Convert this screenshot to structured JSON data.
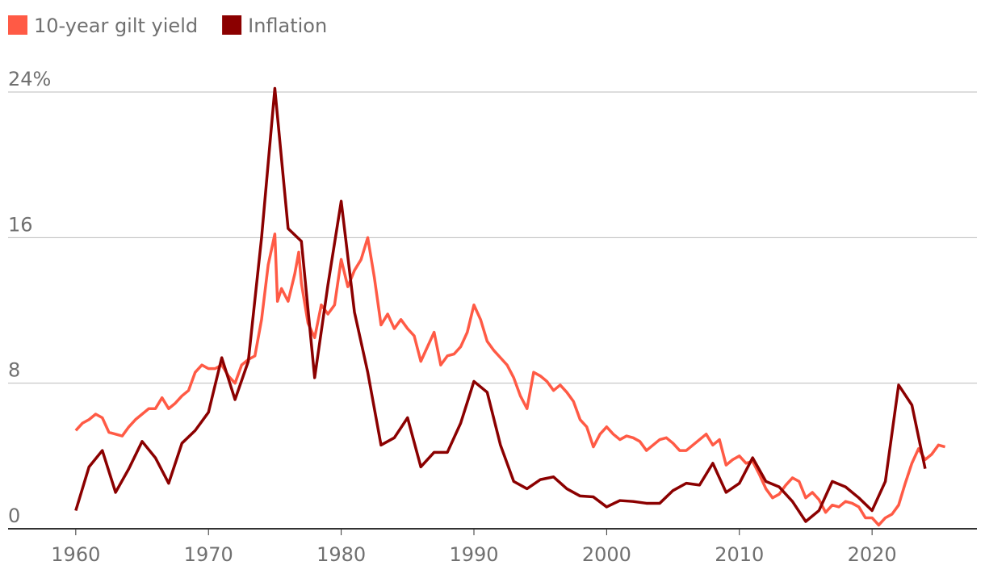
{
  "chart_data": {
    "type": "line",
    "legend": "top-left",
    "grid": true,
    "xlim": [
      1954.9,
      2027.9
    ],
    "xticks": [
      1960,
      1970,
      1980,
      1990,
      2000,
      2010,
      2020
    ],
    "ylim": [
      0,
      25
    ],
    "yticks": [
      0,
      8,
      16,
      {
        "value": 24,
        "label": "24%"
      }
    ],
    "series": [
      {
        "name": "10-year gilt yield",
        "color": "#ff5a45",
        "x": [
          1960,
          1960.5,
          1961,
          1961.5,
          1962,
          1962.5,
          1963,
          1963.5,
          1964,
          1964.5,
          1965,
          1965.5,
          1966,
          1966.5,
          1967,
          1967.5,
          1968,
          1968.5,
          1969,
          1969.5,
          1970,
          1970.5,
          1971,
          1971.5,
          1972,
          1972.5,
          1973,
          1973.5,
          1974,
          1974.5,
          1975,
          1975.2,
          1975.5,
          1976,
          1976.5,
          1976.8,
          1977,
          1977.5,
          1978,
          1978.5,
          1979,
          1979.5,
          1980,
          1980.5,
          1981,
          1981.5,
          1982,
          1982.5,
          1983,
          1983.5,
          1984,
          1984.5,
          1985,
          1985.5,
          1986,
          1986.5,
          1987,
          1987.5,
          1988,
          1988.5,
          1989,
          1989.5,
          1990,
          1990.5,
          1991,
          1991.5,
          1992,
          1992.5,
          1993,
          1993.5,
          1994,
          1994.5,
          1995,
          1995.5,
          1996,
          1996.5,
          1997,
          1997.5,
          1998,
          1998.5,
          1999,
          1999.5,
          2000,
          2000.5,
          2001,
          2001.5,
          2002,
          2002.5,
          2003,
          2003.5,
          2004,
          2004.5,
          2005,
          2005.5,
          2006,
          2006.5,
          2007,
          2007.5,
          2008,
          2008.5,
          2009,
          2009.5,
          2010,
          2010.5,
          2011,
          2011.5,
          2012,
          2012.5,
          2013,
          2013.5,
          2014,
          2014.5,
          2015,
          2015.5,
          2016,
          2016.5,
          2017,
          2017.5,
          2018,
          2018.5,
          2019,
          2019.5,
          2020,
          2020.5,
          2021,
          2021.5,
          2022,
          2022.5,
          2023,
          2023.5,
          2024,
          2024.5,
          2025,
          2025.5
        ],
        "values": [
          5.4,
          5.8,
          6.0,
          6.3,
          6.1,
          5.3,
          5.2,
          5.1,
          5.6,
          6.0,
          6.3,
          6.6,
          6.6,
          7.2,
          6.6,
          6.9,
          7.3,
          7.6,
          8.6,
          9.0,
          8.8,
          8.8,
          9.0,
          8.4,
          8.0,
          9.0,
          9.3,
          9.5,
          11.5,
          14.5,
          16.2,
          12.5,
          13.2,
          12.5,
          14.0,
          15.2,
          13.5,
          11.3,
          10.5,
          12.3,
          11.8,
          12.3,
          14.8,
          13.3,
          14.2,
          14.8,
          16.0,
          13.8,
          11.2,
          11.8,
          11.0,
          11.5,
          11.0,
          10.6,
          9.2,
          10.0,
          10.8,
          9.0,
          9.5,
          9.6,
          10.0,
          10.8,
          12.3,
          11.5,
          10.3,
          9.8,
          9.4,
          9.0,
          8.3,
          7.3,
          6.6,
          8.6,
          8.4,
          8.1,
          7.6,
          7.9,
          7.5,
          7.0,
          6.0,
          5.6,
          4.5,
          5.2,
          5.6,
          5.2,
          4.9,
          5.1,
          5.0,
          4.8,
          4.3,
          4.6,
          4.9,
          5.0,
          4.7,
          4.3,
          4.3,
          4.6,
          4.9,
          5.2,
          4.6,
          4.9,
          3.5,
          3.8,
          4.0,
          3.6,
          3.7,
          3.0,
          2.2,
          1.7,
          1.9,
          2.4,
          2.8,
          2.6,
          1.7,
          2.0,
          1.6,
          0.9,
          1.3,
          1.2,
          1.5,
          1.4,
          1.2,
          0.6,
          0.6,
          0.2,
          0.6,
          0.8,
          1.3,
          2.5,
          3.6,
          4.4,
          3.8,
          4.1,
          4.6,
          4.5
        ]
      },
      {
        "name": "Inflation",
        "color": "#8b0000",
        "x": [
          1960,
          1961,
          1962,
          1963,
          1964,
          1965,
          1966,
          1967,
          1968,
          1969,
          1970,
          1971,
          1972,
          1973,
          1974,
          1975,
          1976,
          1977,
          1978,
          1979,
          1980,
          1981,
          1982,
          1983,
          1984,
          1985,
          1986,
          1987,
          1988,
          1989,
          1990,
          1991,
          1992,
          1993,
          1994,
          1995,
          1996,
          1997,
          1998,
          1999,
          2000,
          2001,
          2002,
          2003,
          2004,
          2005,
          2006,
          2007,
          2008,
          2009,
          2010,
          2011,
          2012,
          2013,
          2014,
          2015,
          2016,
          2017,
          2018,
          2019,
          2020,
          2021,
          2022,
          2023,
          2024
        ],
        "values": [
          1.0,
          3.4,
          4.3,
          2.0,
          3.3,
          4.8,
          3.9,
          2.5,
          4.7,
          5.4,
          6.4,
          9.4,
          7.1,
          9.2,
          16.0,
          24.2,
          16.5,
          15.8,
          8.3,
          13.4,
          18.0,
          11.9,
          8.6,
          4.6,
          5.0,
          6.1,
          3.4,
          4.2,
          4.2,
          5.8,
          8.1,
          7.5,
          4.6,
          2.6,
          2.2,
          2.7,
          2.85,
          2.2,
          1.8,
          1.75,
          1.2,
          1.55,
          1.5,
          1.4,
          1.4,
          2.1,
          2.5,
          2.4,
          3.6,
          2.0,
          2.5,
          3.9,
          2.6,
          2.3,
          1.5,
          0.4,
          1.0,
          2.6,
          2.3,
          1.7,
          1.0,
          2.6,
          7.9,
          6.8,
          3.3
        ]
      }
    ]
  }
}
